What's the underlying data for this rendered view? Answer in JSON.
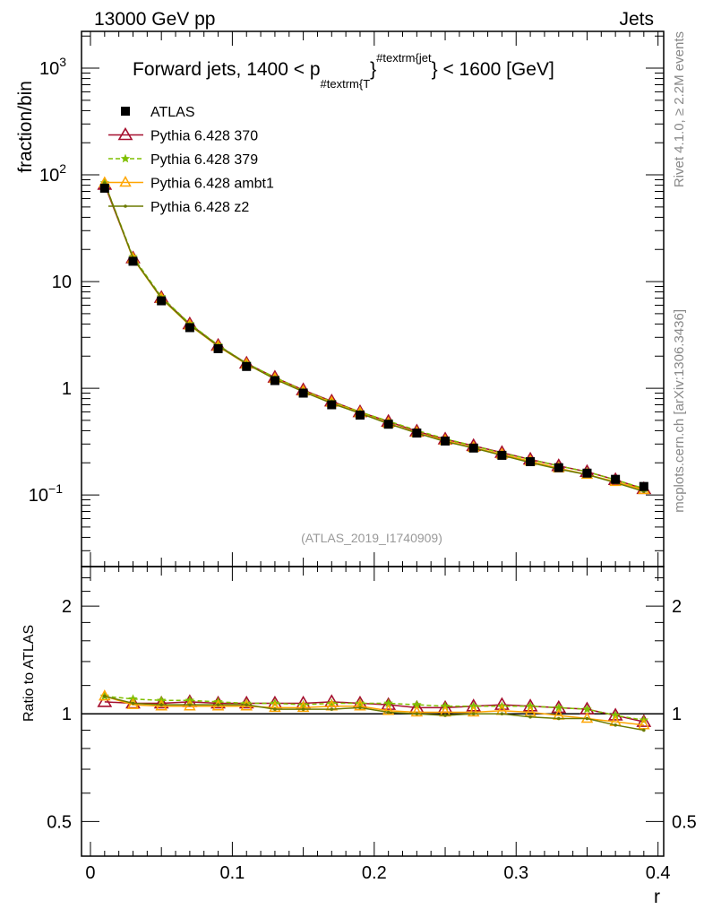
{
  "header": {
    "left": "13000 GeV pp",
    "right": "Jets"
  },
  "side_text": {
    "rivet": "Rivet 4.1.0, ≥ 2.2M events",
    "mcplots": "mcplots.cern.ch [arXiv:1306.3436]"
  },
  "watermark": "(ATLAS_2019_I1740909)",
  "colors": {
    "ATLAS": "#000000",
    "370": "#a50f2e",
    "379": "#7fbf00",
    "ambt1": "#ffa500",
    "z2": "#6b7a00"
  },
  "chart_data": [
    {
      "type": "line",
      "title_parts": {
        "main": "Forward jets, 1400 < p",
        "sub": "#textrm{T",
        "mid": "}",
        "sup": "#textrm{jet",
        "end": "} < 1600 [GeV]"
      },
      "ylabel": "fraction/bin",
      "yscale": "log",
      "ylim": [
        0.0213,
        2213
      ],
      "xlim": [
        -0.0063,
        0.404
      ],
      "y_tick_labels": [
        {
          "v": 0.1,
          "base": "10",
          "exp": "−1"
        },
        {
          "v": 1,
          "base": "1",
          "exp": ""
        },
        {
          "v": 10,
          "base": "10",
          "exp": ""
        },
        {
          "v": 100,
          "base": "10",
          "exp": "2"
        },
        {
          "v": 1000,
          "base": "10",
          "exp": "3"
        }
      ],
      "x": [
        0.01,
        0.03,
        0.05,
        0.07,
        0.09,
        0.11,
        0.13,
        0.15,
        0.17,
        0.19,
        0.21,
        0.23,
        0.25,
        0.27,
        0.29,
        0.31,
        0.33,
        0.35,
        0.37,
        0.39
      ],
      "legend": [
        "ATLAS",
        "Pythia 6.428 370",
        "Pythia 6.428 379",
        "Pythia 6.428 ambt1",
        "Pythia 6.428 z2"
      ],
      "legend_placement": "top-left",
      "atlas": [
        75,
        15.5,
        6.6,
        3.7,
        2.35,
        1.6,
        1.18,
        0.9,
        0.7,
        0.56,
        0.46,
        0.38,
        0.32,
        0.275,
        0.235,
        0.205,
        0.18,
        0.16,
        0.14,
        0.12
      ]
    },
    {
      "type": "line",
      "ylabel": "Ratio to ATLAS",
      "xlabel": "r",
      "yscale": "log2",
      "ylim": [
        0.4,
        2.58
      ],
      "y_ticks": [
        0.5,
        1,
        2
      ],
      "y_tick_labels": [
        "0.5",
        "1",
        "2"
      ],
      "x_ticks": [
        0,
        0.1,
        0.2,
        0.3,
        0.4
      ],
      "x_tick_labels": [
        "0",
        "0.1",
        "0.2",
        "0.3",
        "0.4"
      ],
      "series": [
        {
          "name": "Pythia 6.428 370",
          "key": "370",
          "marker": "triangle-open",
          "dash": false,
          "values": [
            1.08,
            1.07,
            1.07,
            1.08,
            1.07,
            1.07,
            1.07,
            1.07,
            1.08,
            1.07,
            1.06,
            1.04,
            1.04,
            1.05,
            1.06,
            1.05,
            1.04,
            1.03,
            0.99,
            0.95
          ]
        },
        {
          "name": "Pythia 6.428 379",
          "key": "379",
          "marker": "star",
          "dash": true,
          "values": [
            1.12,
            1.1,
            1.09,
            1.09,
            1.08,
            1.07,
            1.07,
            1.06,
            1.07,
            1.07,
            1.07,
            1.06,
            1.05,
            1.05,
            1.05,
            1.05,
            1.04,
            1.03,
            0.99,
            0.96
          ]
        },
        {
          "name": "Pythia 6.428 ambt1",
          "key": "ambt1",
          "marker": "triangle-open-small",
          "dash": false,
          "values": [
            1.12,
            1.06,
            1.05,
            1.05,
            1.05,
            1.05,
            1.04,
            1.04,
            1.05,
            1.05,
            1.02,
            1.01,
            1.01,
            1.01,
            1.02,
            1.01,
            0.99,
            0.97,
            0.95,
            0.93
          ]
        },
        {
          "name": "Pythia 6.428 z2",
          "key": "z2",
          "marker": "dot",
          "dash": false,
          "values": [
            1.12,
            1.07,
            1.06,
            1.06,
            1.06,
            1.06,
            1.03,
            1.03,
            1.03,
            1.04,
            1.01,
            1.0,
            0.99,
            1.0,
            1.0,
            0.98,
            0.97,
            0.97,
            0.93,
            0.9
          ]
        }
      ]
    }
  ]
}
